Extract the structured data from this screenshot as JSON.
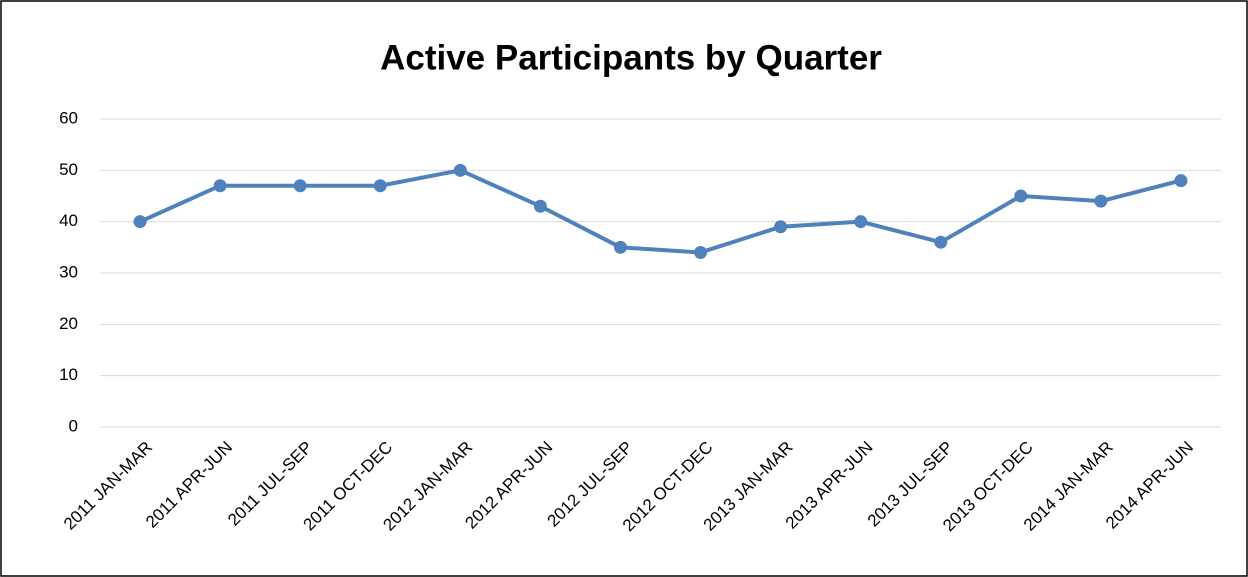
{
  "chart_data": {
    "type": "line",
    "title": "Active Participants by Quarter",
    "categories": [
      "2011 JAN-MAR",
      "2011 APR-JUN",
      "2011 JUL-SEP",
      "2011 OCT-DEC",
      "2012 JAN-MAR",
      "2012 APR-JUN",
      "2012 JUL-SEP",
      "2012 OCT-DEC",
      "2013 JAN-MAR",
      "2013 APR-JUN",
      "2013 JUL-SEP",
      "2013 OCT-DEC",
      "2014 JAN-MAR",
      "2014 APR-JUN"
    ],
    "values": [
      40,
      47,
      47,
      47,
      50,
      43,
      35,
      34,
      39,
      40,
      36,
      45,
      44,
      48
    ],
    "color": "#4f81bd",
    "ylim": [
      0,
      60
    ],
    "yticks": [
      0,
      10,
      20,
      30,
      40,
      50,
      60
    ],
    "grid": true
  }
}
